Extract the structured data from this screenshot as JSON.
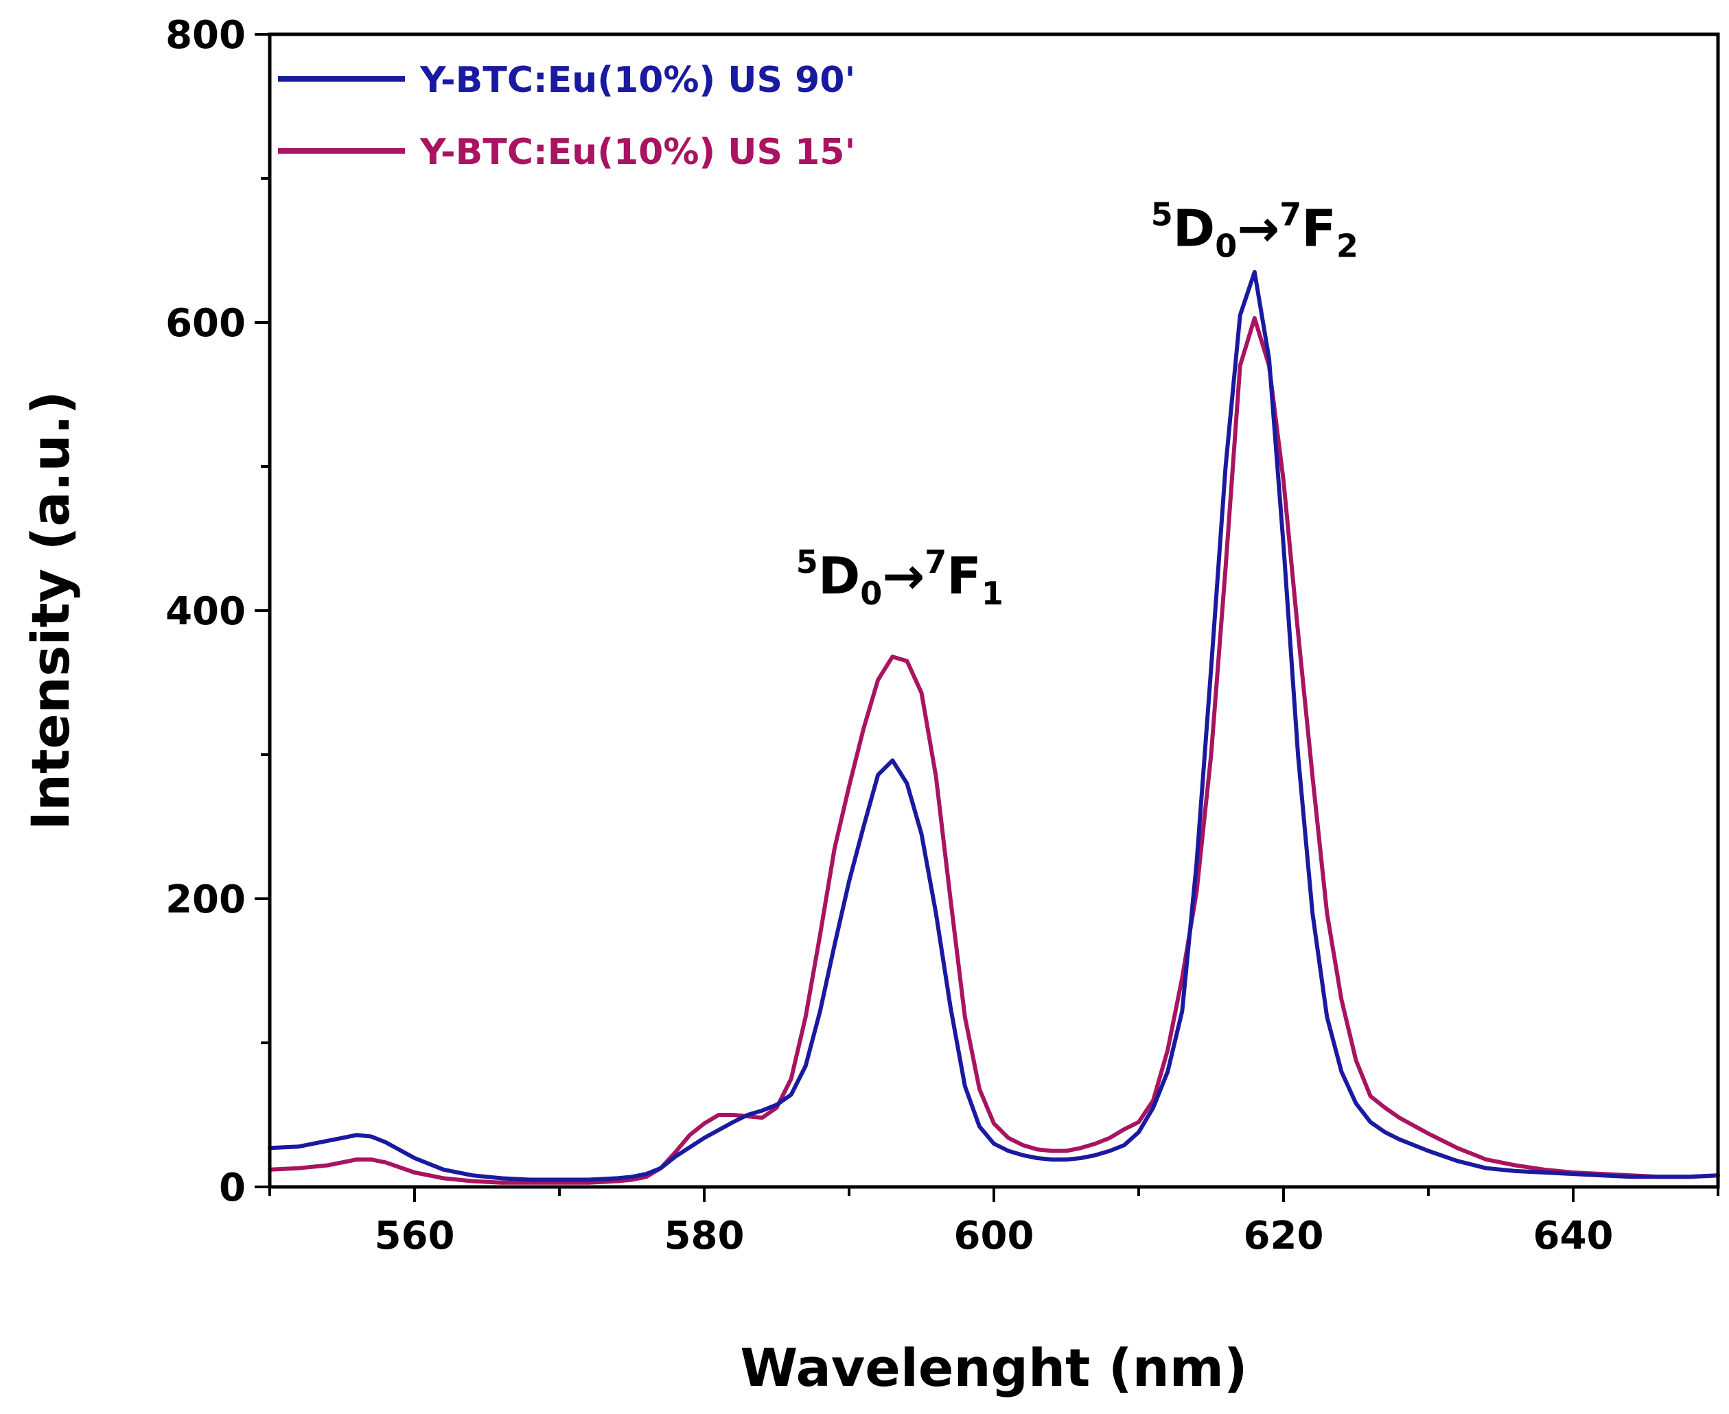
{
  "chart_data": {
    "type": "line",
    "xlabel": "Wavelenght (nm)",
    "ylabel": "Intensity (a.u.)",
    "xlim": [
      550,
      650
    ],
    "ylim": [
      0,
      800
    ],
    "x_ticks": [
      "560",
      "580",
      "600",
      "620",
      "640"
    ],
    "y_ticks": [
      "0",
      "200",
      "400",
      "600",
      "800"
    ],
    "legend_position": "top-left",
    "series": [
      {
        "name": "Y-BTC:Eu(10%) US 90'",
        "color": "#1a1aa0",
        "points": [
          [
            550,
            27
          ],
          [
            552,
            28
          ],
          [
            554,
            32
          ],
          [
            556,
            36
          ],
          [
            557,
            35
          ],
          [
            558,
            31
          ],
          [
            560,
            20
          ],
          [
            562,
            12
          ],
          [
            564,
            8
          ],
          [
            566,
            6
          ],
          [
            568,
            5
          ],
          [
            570,
            5
          ],
          [
            572,
            5
          ],
          [
            574,
            6
          ],
          [
            575,
            7
          ],
          [
            576,
            9
          ],
          [
            577,
            13
          ],
          [
            578,
            21
          ],
          [
            580,
            34
          ],
          [
            582,
            45
          ],
          [
            583,
            50
          ],
          [
            584,
            53
          ],
          [
            585,
            57
          ],
          [
            586,
            64
          ],
          [
            587,
            84
          ],
          [
            588,
            122
          ],
          [
            589,
            168
          ],
          [
            590,
            212
          ],
          [
            591,
            250
          ],
          [
            592,
            286
          ],
          [
            593,
            296
          ],
          [
            594,
            280
          ],
          [
            595,
            245
          ],
          [
            596,
            190
          ],
          [
            597,
            125
          ],
          [
            598,
            70
          ],
          [
            599,
            42
          ],
          [
            600,
            30
          ],
          [
            601,
            25
          ],
          [
            602,
            22
          ],
          [
            603,
            20
          ],
          [
            604,
            19
          ],
          [
            605,
            19
          ],
          [
            606,
            20
          ],
          [
            607,
            22
          ],
          [
            608,
            25
          ],
          [
            609,
            29
          ],
          [
            610,
            38
          ],
          [
            611,
            55
          ],
          [
            612,
            80
          ],
          [
            613,
            122
          ],
          [
            614,
            225
          ],
          [
            615,
            360
          ],
          [
            616,
            500
          ],
          [
            617,
            605
          ],
          [
            618,
            635
          ],
          [
            619,
            575
          ],
          [
            620,
            445
          ],
          [
            621,
            300
          ],
          [
            622,
            190
          ],
          [
            623,
            118
          ],
          [
            624,
            80
          ],
          [
            625,
            58
          ],
          [
            626,
            45
          ],
          [
            627,
            38
          ],
          [
            628,
            33
          ],
          [
            630,
            25
          ],
          [
            632,
            18
          ],
          [
            634,
            13
          ],
          [
            636,
            11
          ],
          [
            638,
            10
          ],
          [
            640,
            9
          ],
          [
            642,
            8
          ],
          [
            644,
            7
          ],
          [
            646,
            7
          ],
          [
            648,
            7
          ],
          [
            650,
            8
          ]
        ]
      },
      {
        "name": "Y-BTC:Eu(10%) US 15'",
        "color": "#a8145f",
        "points": [
          [
            550,
            12
          ],
          [
            552,
            13
          ],
          [
            554,
            15
          ],
          [
            556,
            19
          ],
          [
            557,
            19
          ],
          [
            558,
            17
          ],
          [
            560,
            10
          ],
          [
            562,
            6
          ],
          [
            564,
            4
          ],
          [
            566,
            3
          ],
          [
            568,
            3
          ],
          [
            570,
            3
          ],
          [
            572,
            3
          ],
          [
            574,
            4
          ],
          [
            575,
            5
          ],
          [
            576,
            7
          ],
          [
            577,
            13
          ],
          [
            578,
            24
          ],
          [
            579,
            36
          ],
          [
            580,
            44
          ],
          [
            581,
            50
          ],
          [
            582,
            50
          ],
          [
            583,
            49
          ],
          [
            584,
            48
          ],
          [
            585,
            55
          ],
          [
            586,
            75
          ],
          [
            587,
            118
          ],
          [
            588,
            175
          ],
          [
            589,
            235
          ],
          [
            590,
            278
          ],
          [
            591,
            318
          ],
          [
            592,
            352
          ],
          [
            593,
            368
          ],
          [
            594,
            365
          ],
          [
            595,
            343
          ],
          [
            596,
            285
          ],
          [
            597,
            200
          ],
          [
            598,
            118
          ],
          [
            599,
            68
          ],
          [
            600,
            44
          ],
          [
            601,
            34
          ],
          [
            602,
            29
          ],
          [
            603,
            26
          ],
          [
            604,
            25
          ],
          [
            605,
            25
          ],
          [
            606,
            27
          ],
          [
            607,
            30
          ],
          [
            608,
            34
          ],
          [
            609,
            40
          ],
          [
            610,
            45
          ],
          [
            611,
            60
          ],
          [
            612,
            95
          ],
          [
            613,
            145
          ],
          [
            614,
            205
          ],
          [
            615,
            300
          ],
          [
            616,
            430
          ],
          [
            617,
            570
          ],
          [
            618,
            603
          ],
          [
            619,
            570
          ],
          [
            620,
            490
          ],
          [
            621,
            385
          ],
          [
            622,
            285
          ],
          [
            623,
            190
          ],
          [
            624,
            130
          ],
          [
            625,
            88
          ],
          [
            626,
            63
          ],
          [
            627,
            55
          ],
          [
            628,
            48
          ],
          [
            630,
            37
          ],
          [
            632,
            27
          ],
          [
            634,
            19
          ],
          [
            636,
            15
          ],
          [
            638,
            12
          ],
          [
            640,
            10
          ],
          [
            642,
            9
          ],
          [
            644,
            8
          ],
          [
            646,
            7
          ],
          [
            648,
            7
          ],
          [
            650,
            8
          ]
        ]
      }
    ],
    "annotations": [
      {
        "base": "D",
        "sup1": "5",
        "sub1": "0",
        "arrow": "→",
        "sup2": "7",
        "base2": "F",
        "sub2": "1",
        "at_x": 593.5,
        "at_y": 412
      },
      {
        "base": "D",
        "sup1": "5",
        "sub1": "0",
        "arrow": "→",
        "sup2": "7",
        "base2": "F",
        "sub2": "2",
        "at_x": 618,
        "at_y": 653
      }
    ]
  }
}
